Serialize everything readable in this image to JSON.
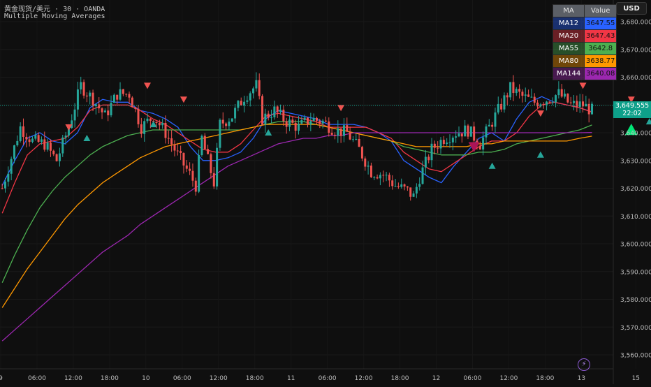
{
  "header": {
    "symbol_line": "黄金现货/美元 · 30 · OANDA",
    "indicator_name": "Multiple Moving Averages"
  },
  "currency_button": "USD",
  "last_price": {
    "value": "3,649.555",
    "countdown": "22:02",
    "color": "#0ea08a"
  },
  "ma_table": {
    "headers": [
      "MA",
      "Value"
    ],
    "rows": [
      {
        "name": "MA12",
        "value": "3647.55",
        "color": "#2962ff"
      },
      {
        "name": "MA20",
        "value": "3647.43",
        "color": "#f23645"
      },
      {
        "name": "MA55",
        "value": "3642.8",
        "color": "#4caf50"
      },
      {
        "name": "MA80",
        "value": "3638.77",
        "color": "#ff9800"
      },
      {
        "name": "MA144",
        "value": "3640.08",
        "color": "#9c27b0"
      }
    ]
  },
  "icons": {
    "flash": "lightning-icon"
  },
  "chart_data": {
    "type": "candlestick",
    "ylim": [
      3555,
      3685
    ],
    "y_ticks": [
      "3,560.000",
      "3,570.000",
      "3,580.000",
      "3,590.000",
      "3,600.000",
      "3,610.000",
      "3,620.000",
      "3,630.000",
      "3,640.000",
      "3,650.000",
      "3,660.000",
      "3,670.000",
      "3,680.000"
    ],
    "y_tick_values": [
      3560,
      3570,
      3580,
      3590,
      3600,
      3610,
      3620,
      3630,
      3640,
      3650,
      3660,
      3670,
      3680
    ],
    "x_ticks": [
      "9",
      "06:00",
      "12:00",
      "18:00",
      "10",
      "06:00",
      "12:00",
      "18:00",
      "11",
      "06:00",
      "12:00",
      "18:00",
      "12",
      "06:00",
      "12:00",
      "18:00",
      "13",
      "15"
    ],
    "x_tick_index": [
      -0.5,
      11.5,
      23.5,
      35.5,
      47.5,
      59.5,
      71.5,
      83.5,
      95.5,
      107.5,
      119.5,
      131.5,
      143.5,
      155.5,
      167.5,
      179.5,
      191.5,
      209.5
    ],
    "price_points": [
      [
        0,
        3620
      ],
      [
        6,
        3642
      ],
      [
        10,
        3637
      ],
      [
        14,
        3636
      ],
      [
        18,
        3630
      ],
      [
        22,
        3642
      ],
      [
        26,
        3657
      ],
      [
        30,
        3652
      ],
      [
        34,
        3646
      ],
      [
        38,
        3654
      ],
      [
        42,
        3654
      ],
      [
        46,
        3642
      ],
      [
        50,
        3646
      ],
      [
        54,
        3640
      ],
      [
        58,
        3632
      ],
      [
        62,
        3625
      ],
      [
        64,
        3621
      ],
      [
        66,
        3638
      ],
      [
        70,
        3622
      ],
      [
        72,
        3643
      ],
      [
        76,
        3646
      ],
      [
        80,
        3653
      ],
      [
        84,
        3657
      ],
      [
        86,
        3645
      ],
      [
        90,
        3648
      ],
      [
        94,
        3644
      ],
      [
        98,
        3642
      ],
      [
        102,
        3645
      ],
      [
        106,
        3644
      ],
      [
        110,
        3641
      ],
      [
        114,
        3640
      ],
      [
        118,
        3634
      ],
      [
        122,
        3626
      ],
      [
        126,
        3625
      ],
      [
        130,
        3621
      ],
      [
        134,
        3619
      ],
      [
        136,
        3617
      ],
      [
        138,
        3624
      ],
      [
        142,
        3634
      ],
      [
        146,
        3638
      ],
      [
        150,
        3640
      ],
      [
        154,
        3641
      ],
      [
        158,
        3636
      ],
      [
        160,
        3640
      ],
      [
        164,
        3648
      ],
      [
        168,
        3656
      ],
      [
        172,
        3653
      ],
      [
        176,
        3651
      ],
      [
        180,
        3652
      ],
      [
        184,
        3654
      ],
      [
        188,
        3650
      ],
      [
        192,
        3650
      ],
      [
        195,
        3648
      ]
    ],
    "last_index": 195,
    "series": [
      {
        "name": "MA12",
        "color": "#2962ff",
        "values": [
          3621,
          3630,
          3638,
          3640,
          3637,
          3636,
          3640,
          3649,
          3652,
          3651,
          3651,
          3648,
          3647,
          3645,
          3642,
          3635,
          3630,
          3630,
          3631,
          3633,
          3638,
          3645,
          3648,
          3647,
          3646,
          3645,
          3643,
          3643,
          3643,
          3642,
          3640,
          3637,
          3630,
          3627,
          3624,
          3622,
          3628,
          3633,
          3638,
          3640,
          3637,
          3645,
          3651,
          3653,
          3651,
          3650,
          3649,
          3647.55
        ]
      },
      {
        "name": "MA20",
        "color": "#f23645",
        "values": [
          3611,
          3622,
          3632,
          3636,
          3637,
          3638,
          3642,
          3648,
          3650,
          3650,
          3650,
          3648,
          3645,
          3643,
          3640,
          3637,
          3634,
          3633,
          3633,
          3636,
          3641,
          3646,
          3647,
          3646,
          3645,
          3644,
          3642,
          3642,
          3642,
          3642,
          3640,
          3638,
          3633,
          3630,
          3627,
          3626,
          3629,
          3632,
          3635,
          3637,
          3637,
          3640,
          3646,
          3650,
          3651,
          3650,
          3649,
          3647.43
        ]
      },
      {
        "name": "MA55",
        "color": "#4caf50",
        "values": [
          3586,
          3596,
          3605,
          3613,
          3619,
          3624,
          3628,
          3632,
          3635,
          3637,
          3639,
          3640,
          3641,
          3641,
          3641,
          3641,
          3641,
          3641,
          3641,
          3641,
          3642,
          3643,
          3644,
          3644,
          3644,
          3643,
          3642,
          3641,
          3640,
          3639,
          3638,
          3637,
          3635,
          3634,
          3633,
          3632,
          3632,
          3632,
          3633,
          3633,
          3634,
          3636,
          3637,
          3638,
          3639,
          3640,
          3641,
          3642.8
        ]
      },
      {
        "name": "MA80",
        "color": "#ff9800",
        "values": [
          3577,
          3584,
          3591,
          3597,
          3603,
          3609,
          3614,
          3618,
          3622,
          3625,
          3628,
          3631,
          3633,
          3635,
          3636,
          3637,
          3638,
          3639,
          3640,
          3641,
          3642,
          3643,
          3643,
          3643,
          3643,
          3643,
          3642,
          3641,
          3640,
          3639,
          3638,
          3637,
          3636,
          3635,
          3635,
          3635,
          3635,
          3635,
          3636,
          3636,
          3637,
          3637,
          3637,
          3637,
          3637,
          3637,
          3638,
          3638.77
        ]
      },
      {
        "name": "MA144",
        "color": "#9c27b0",
        "values": [
          3565,
          3569,
          3573,
          3577,
          3581,
          3585,
          3589,
          3593,
          3597,
          3600,
          3603,
          3607,
          3610,
          3613,
          3616,
          3619,
          3622,
          3625,
          3628,
          3630,
          3632,
          3634,
          3636,
          3637,
          3638,
          3638,
          3639,
          3639,
          3640,
          3640,
          3640,
          3640,
          3640,
          3640,
          3640,
          3640,
          3640,
          3640,
          3640,
          3640,
          3640,
          3640,
          3640,
          3640,
          3640,
          3640,
          3640,
          3640.08
        ]
      }
    ],
    "signals_up": [
      [
        28,
        3638
      ],
      [
        50,
        3643
      ],
      [
        88,
        3640
      ],
      [
        162,
        3628
      ],
      [
        178,
        3632
      ],
      [
        208,
        3641
      ],
      [
        214,
        3644
      ]
    ],
    "signals_down": [
      [
        22,
        3642
      ],
      [
        48,
        3657
      ],
      [
        60,
        3652
      ],
      [
        112,
        3649
      ],
      [
        178,
        3647
      ],
      [
        156,
        3635
      ],
      [
        192,
        3657
      ],
      [
        208,
        3652
      ]
    ],
    "signal_colors": {
      "up": "#26a69a",
      "down": "#ef5350",
      "up_big": "#00e676",
      "down_big": "#ad1457"
    }
  }
}
